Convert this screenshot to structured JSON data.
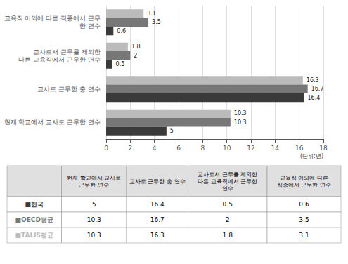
{
  "chart_data": {
    "type": "bar",
    "orientation": "horizontal",
    "categories": [
      "현재 학교에서 교사로 근무한 연수",
      "교사로 근무한 총 연수",
      "교사로서 근무를 제외한\n다른 교육직에서 근무한 연수",
      "교육직 이외에 다른 직종에서 근무한 연수"
    ],
    "series": [
      {
        "name": "한국",
        "color": "#3a3a3a",
        "values": [
          5,
          16.4,
          0.5,
          0.6
        ]
      },
      {
        "name": "OECD평균",
        "color": "#777777",
        "values": [
          10.3,
          16.7,
          2.0,
          3.5
        ]
      },
      {
        "name": "TALIS평균",
        "color": "#bbbbbb",
        "values": [
          10.3,
          16.3,
          1.8,
          3.1
        ]
      }
    ],
    "xlim": [
      0,
      18
    ],
    "xticks": [
      0,
      2,
      4,
      6,
      8,
      10,
      12,
      14,
      16,
      18
    ],
    "grid": true,
    "data_labels": true,
    "annotation": "(단위:년)",
    "table": {
      "columns": [
        "현재 학교에서 교사로\n근무한 연수",
        "교사로 근무한 총 연수",
        "교사로서 근무를 제외한\n다른 교육직에서 근무한\n연수",
        "교육직 이외에 다른\n직종에서 근무한 연수"
      ],
      "rows": [
        {
          "label": "■한국",
          "color": "#3a3a3a",
          "values": [
            "5",
            "16.4",
            "0.5",
            "0.6"
          ]
        },
        {
          "label": "■OECD평균",
          "color": "#777777",
          "values": [
            "10.3",
            "16.7",
            "2",
            "3.5"
          ]
        },
        {
          "label": "■TALIS평균",
          "color": "#bbbbbb",
          "values": [
            "10.3",
            "16.3",
            "1.8",
            "3.1"
          ]
        }
      ]
    }
  }
}
